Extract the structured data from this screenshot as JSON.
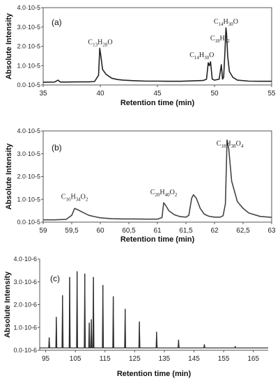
{
  "chart_data": [
    {
      "type": "line",
      "panel_label": "(a)",
      "xlabel": "Retention time (min)",
      "ylabel": "Absolute Intensity",
      "xlim": [
        35,
        55
      ],
      "ylim": [
        0,
        4e-05
      ],
      "xticks": [
        "35",
        "40",
        "45",
        "50",
        "55"
      ],
      "xtick_values": [
        35,
        40,
        45,
        50,
        55
      ],
      "yticks": [
        "0.0·10-5",
        "1.0·10-5",
        "2.0·10-5",
        "3.0·10-5",
        "4.0·10-5"
      ],
      "ytick_values": [
        0,
        1e-05,
        2e-05,
        3e-05,
        4e-05
      ],
      "baseline": 1.5e-06,
      "x": [
        35,
        36,
        36.3,
        36.5,
        37,
        38,
        39,
        39.5,
        39.85,
        39.95,
        40.05,
        40.2,
        40.5,
        41,
        41.5,
        42,
        43,
        44,
        45,
        46,
        47,
        48,
        49,
        49.3,
        49.45,
        49.55,
        49.65,
        49.8,
        50,
        50.4,
        50.6,
        50.7,
        50.8,
        50.9,
        51.0,
        51.05,
        51.15,
        51.3,
        51.6,
        52,
        53,
        54,
        55
      ],
      "y": [
        1.4e-06,
        1.5e-06,
        2.5e-06,
        1.5e-06,
        1.5e-06,
        1.6e-06,
        1.6e-06,
        1.8e-06,
        5e-06,
        1.9e-05,
        1.5e-05,
        8e-06,
        5.5e-06,
        3.5e-06,
        2.8e-06,
        2.5e-06,
        2.2e-06,
        2e-06,
        2e-06,
        1.9e-06,
        1.9e-06,
        2.1e-06,
        2.3e-06,
        3e-06,
        1.15e-05,
        1e-05,
        1.2e-05,
        3e-06,
        2.5e-06,
        3e-06,
        1.05e-05,
        3e-06,
        4e-06,
        1.6e-05,
        2.95e-05,
        2.7e-05,
        1.5e-05,
        7e-06,
        4e-06,
        2.5e-06,
        2e-06,
        1.9e-06,
        1.9e-06
      ],
      "annotations": [
        {
          "base": "C",
          "n1": "13",
          "mid": "H",
          "n2": "28",
          "end": "O",
          "x": 40.0,
          "y": 1.9e-05
        },
        {
          "base": "C",
          "n1": "14",
          "mid": "H",
          "n2": "30",
          "end": "O",
          "x": 49.5,
          "y": 1.15e-05
        },
        {
          "base": "C",
          "n1": "18",
          "mid": "H",
          "n2": "22",
          "end": "",
          "x": 50.6,
          "y": 1.65e-05
        },
        {
          "base": "C",
          "n1": "14",
          "mid": "H",
          "n2": "30",
          "end": "O",
          "x": 51.0,
          "y": 2.95e-05
        }
      ]
    },
    {
      "type": "line",
      "panel_label": "(b)",
      "xlabel": "Retention time (min)",
      "ylabel": "Absolute Intensity",
      "xlim": [
        59,
        63
      ],
      "ylim": [
        0,
        4e-05
      ],
      "xticks": [
        "59",
        "59,5",
        "60",
        "60,5",
        "61",
        "61,5",
        "62",
        "62,5",
        "63"
      ],
      "xtick_values": [
        59,
        59.5,
        60,
        60.5,
        61,
        61.5,
        62,
        62.5,
        63
      ],
      "yticks": [
        "0.0·10-5",
        "1.0·10-5",
        "2.0·10-5",
        "3.0·10-5",
        "4.0·10-5"
      ],
      "ytick_values": [
        0,
        1e-05,
        2e-05,
        3e-05,
        4e-05
      ],
      "x": [
        59,
        59.2,
        59.4,
        59.5,
        59.55,
        59.6,
        59.7,
        59.8,
        59.9,
        60.0,
        60.2,
        60.4,
        60.6,
        60.8,
        61.0,
        61.08,
        61.11,
        61.14,
        61.2,
        61.3,
        61.4,
        61.5,
        61.55,
        61.6,
        61.63,
        61.68,
        61.75,
        61.82,
        61.9,
        62.0,
        62.1,
        62.15,
        62.19,
        62.22,
        62.25,
        62.3,
        62.4,
        62.5,
        62.6,
        62.8,
        63.0
      ],
      "y": [
        1e-06,
        1e-06,
        1.2e-06,
        3e-06,
        6e-06,
        5.5e-06,
        4.2e-06,
        3e-06,
        2.4e-06,
        1.9e-06,
        1.5e-06,
        1.4e-06,
        1.4e-06,
        1.3e-06,
        1.3e-06,
        2e-06,
        8.5e-06,
        7.5e-06,
        5e-06,
        3.2e-06,
        2.4e-06,
        2.2e-06,
        3e-06,
        1.05e-05,
        1.2e-05,
        1.05e-05,
        6e-06,
        3.5e-06,
        2.6e-06,
        2.2e-06,
        2.2e-06,
        2.8e-06,
        8e-06,
        3.6e-05,
        3.2e-05,
        1.8e-05,
        9e-06,
        6e-06,
        4e-06,
        2.5e-06,
        2.1e-06
      ],
      "annotations": [
        {
          "base": "C",
          "n1": "16",
          "mid": "H",
          "n2": "34",
          "end": "O",
          "n3": "2",
          "x": 59.55,
          "y": 6e-06
        },
        {
          "base": "C",
          "n1": "20",
          "mid": "H",
          "n2": "40",
          "end": "O",
          "n3": "2",
          "x": 61.11,
          "y": 8.5e-06
        },
        {
          "base": "C",
          "n1": "18",
          "mid": "H",
          "n2": "38",
          "end": "O",
          "n3": "4",
          "x": 62.22,
          "y": 3.6e-05
        }
      ]
    },
    {
      "type": "line",
      "panel_label": "(c)",
      "xlabel": "Retention time (min)",
      "ylabel": "Absolute Intensity",
      "xlim": [
        93,
        170
      ],
      "ylim": [
        0,
        4e-06
      ],
      "xticks": [
        "95",
        "105",
        "115",
        "125",
        "135",
        "145",
        "155",
        "165"
      ],
      "xtick_values": [
        95,
        105,
        115,
        125,
        135,
        145,
        155,
        165
      ],
      "yticks": [
        "0.0·10-6",
        "1.0·10-6",
        "2.0·10-6",
        "3.0·10-6",
        "4.0·10-6"
      ],
      "ytick_values": [
        0,
        1e-06,
        2e-06,
        3e-06,
        4e-06
      ],
      "baseline": 1e-07,
      "peaks": [
        {
          "x": 96.2,
          "y": 5.5e-07
        },
        {
          "x": 98.6,
          "y": 1.45e-06
        },
        {
          "x": 100.7,
          "y": 2.4e-06
        },
        {
          "x": 103.1,
          "y": 3.2e-06
        },
        {
          "x": 105.6,
          "y": 3.45e-06
        },
        {
          "x": 108.2,
          "y": 3.35e-06
        },
        {
          "x": 109.7,
          "y": 1.2e-06
        },
        {
          "x": 110.4,
          "y": 1.35e-06
        },
        {
          "x": 111.1,
          "y": 3.2e-06
        },
        {
          "x": 114.3,
          "y": 2.85e-06
        },
        {
          "x": 117.8,
          "y": 2.35e-06
        },
        {
          "x": 121.8,
          "y": 1.8e-06
        },
        {
          "x": 126.6,
          "y": 1.25e-06
        },
        {
          "x": 132.4,
          "y": 8e-07
        },
        {
          "x": 139.8,
          "y": 4.5e-07
        },
        {
          "x": 148.5,
          "y": 2.5e-07
        },
        {
          "x": 158.9,
          "y": 1.7e-07
        }
      ]
    }
  ]
}
